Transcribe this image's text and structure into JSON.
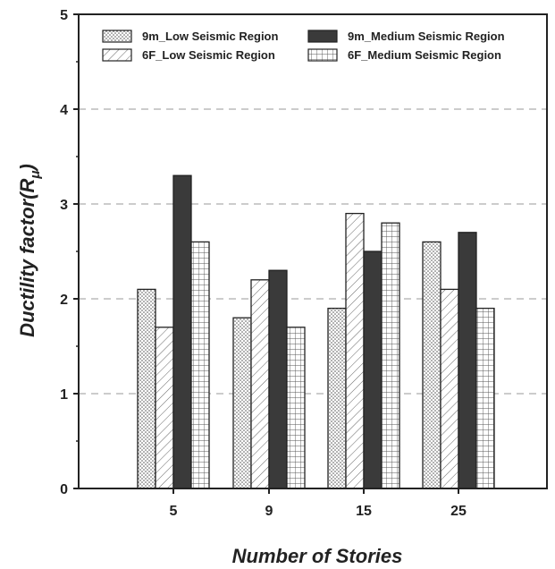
{
  "chart_data": {
    "type": "bar",
    "categories": [
      "5",
      "9",
      "15",
      "25"
    ],
    "series": [
      {
        "name": "9m_Low Seismic Region",
        "values": [
          2.1,
          1.8,
          1.9,
          2.6
        ],
        "pattern": "dots"
      },
      {
        "name": "6F_Low Seismic Region",
        "values": [
          1.7,
          2.2,
          2.9,
          2.1
        ],
        "pattern": "hatch"
      },
      {
        "name": "9m_Medium Seismic Region",
        "values": [
          3.3,
          2.3,
          2.5,
          2.7
        ],
        "pattern": "solid"
      },
      {
        "name": "6F_Medium Seismic Region",
        "values": [
          2.6,
          1.7,
          2.8,
          1.9
        ],
        "pattern": "grid"
      }
    ],
    "xlabel": "Number of Stories",
    "ylabel_main": "Ductility factor(R",
    "ylabel_sub": "μ",
    "ylabel_close": ")",
    "ylim": [
      0,
      5
    ],
    "yticks": [
      0,
      1,
      2,
      3,
      4,
      5
    ],
    "grid": "horizontal dashed",
    "legend_position": "top"
  },
  "colors": {
    "bar_outline": "#222222",
    "solid_fill": "#3a3a3a",
    "grid_line": "#bbbbbb",
    "axis": "#222222"
  }
}
